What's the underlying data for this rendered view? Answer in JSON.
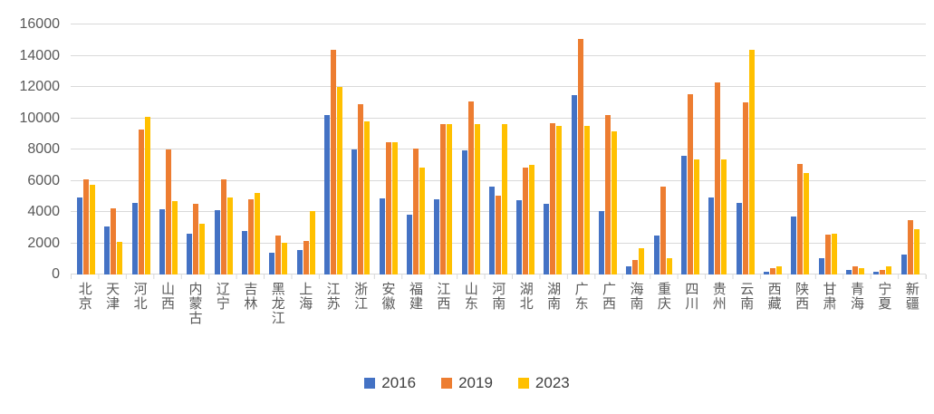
{
  "chart_data": {
    "type": "bar",
    "title": "",
    "xlabel": "",
    "ylabel": "",
    "ylim": [
      0,
      16000
    ],
    "ytick_step": 2000,
    "yticks": [
      0,
      2000,
      4000,
      6000,
      8000,
      10000,
      12000,
      14000,
      16000
    ],
    "grid": "horizontal",
    "legend_position": "bottom",
    "categories": [
      "北京",
      "天津",
      "河北",
      "山西",
      "内蒙古",
      "辽宁",
      "吉林",
      "黑龙江",
      "上海",
      "江苏",
      "浙江",
      "安徽",
      "福建",
      "江西",
      "山东",
      "河南",
      "湖北",
      "湖南",
      "广东",
      "广西",
      "海南",
      "重庆",
      "四川",
      "贵州",
      "云南",
      "西藏",
      "陕西",
      "甘肃",
      "青海",
      "宁夏",
      "新疆"
    ],
    "series": [
      {
        "name": "2016",
        "color": "#4472C4",
        "values": [
          4900,
          3050,
          4600,
          4150,
          2600,
          4100,
          2800,
          1400,
          1550,
          10200,
          8000,
          4850,
          3850,
          4800,
          7950,
          5600,
          4750,
          4550,
          11500,
          4050,
          500,
          2500,
          7600,
          4900,
          4600,
          200,
          3700,
          1050,
          300,
          150,
          1250
        ]
      },
      {
        "name": "2019",
        "color": "#ED7D31",
        "values": [
          6100,
          4250,
          9300,
          8000,
          4550,
          6100,
          4800,
          2500,
          2150,
          14350,
          10900,
          8450,
          8050,
          9600,
          11050,
          5050,
          6850,
          9700,
          15100,
          10200,
          900,
          5600,
          11550,
          12300,
          11000,
          400,
          7100,
          2550,
          500,
          300,
          3500
        ]
      },
      {
        "name": "2023",
        "color": "#FFC000",
        "values": [
          5750,
          2100,
          10100,
          4700,
          3250,
          4900,
          5200,
          2050,
          4050,
          12000,
          9800,
          8450,
          6850,
          9650,
          9600,
          9600,
          7000,
          9500,
          9500,
          9150,
          1700,
          1050,
          7350,
          7350,
          14400,
          500,
          6500,
          2600,
          400,
          550,
          2900
        ]
      }
    ]
  }
}
